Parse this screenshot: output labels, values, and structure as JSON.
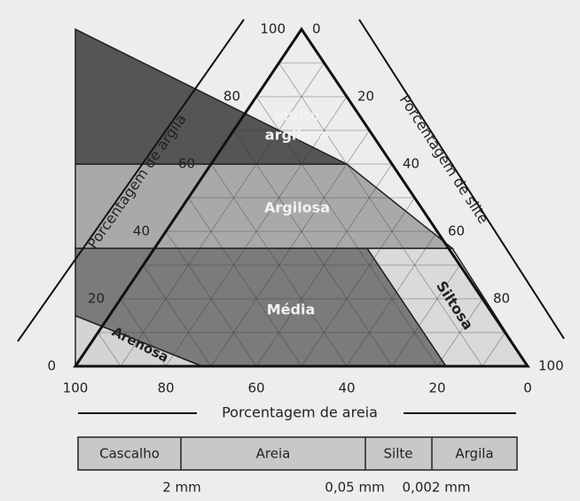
{
  "argila_axis": {
    "label": "Porcentagem de argila",
    "ticks": [
      "100",
      "80",
      "60",
      "40",
      "20",
      "0"
    ]
  },
  "silte_axis": {
    "label": "Porcentagem de silte",
    "ticks": [
      "0",
      "20",
      "40",
      "60",
      "80",
      "100"
    ]
  },
  "areia_axis": {
    "label": "Porcentagem de areia",
    "ticks": [
      "100",
      "80",
      "60",
      "40",
      "20",
      "0"
    ]
  },
  "regions": {
    "muito_argilosa": [
      "Muito",
      "argilosa"
    ],
    "argilosa": "Argilosa",
    "media": "Média",
    "siltosa": "Siltosa",
    "arenosa": "Arenosa"
  },
  "scale": {
    "classes": [
      "Cascalho",
      "Areia",
      "Silte",
      "Argila"
    ],
    "limits": [
      "2 mm",
      "0,05 mm",
      "0,002 mm"
    ]
  }
}
